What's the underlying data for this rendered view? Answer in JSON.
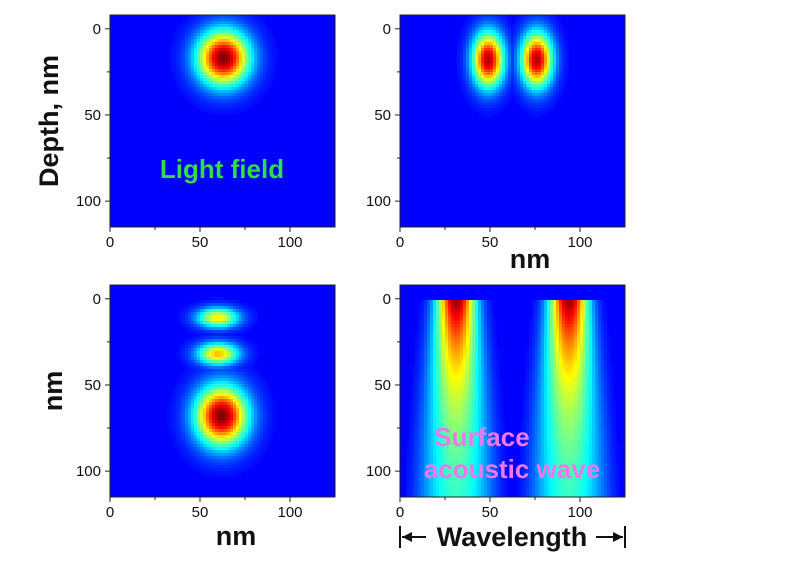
{
  "chart_data": [
    {
      "type": "heatmap",
      "panel": "top-left",
      "title": "",
      "xlabel": "",
      "ylabel": "Depth, nm",
      "xlim": [
        0,
        125
      ],
      "ylim": [
        115,
        -8
      ],
      "x_ticks": [
        0,
        50,
        100
      ],
      "y_ticks": [
        0,
        50,
        100
      ],
      "annotation": "Light field",
      "annotation_color": "#33dd44",
      "hotspots": [
        {
          "x": 63,
          "y": 17,
          "sx": 10,
          "sy": 11,
          "amplitude": 1.0
        }
      ]
    },
    {
      "type": "heatmap",
      "panel": "top-right",
      "title": "",
      "xlabel": "nm",
      "ylabel": "",
      "xlim": [
        0,
        125
      ],
      "ylim": [
        115,
        -8
      ],
      "x_ticks": [
        0,
        50,
        100
      ],
      "y_ticks": [
        0,
        50,
        100
      ],
      "annotation": "",
      "hotspots": [
        {
          "x": 49,
          "y": 18,
          "sx": 6,
          "sy": 11,
          "amplitude": 0.95
        },
        {
          "x": 76,
          "y": 18,
          "sx": 6,
          "sy": 11,
          "amplitude": 0.95
        }
      ]
    },
    {
      "type": "heatmap",
      "panel": "bottom-left",
      "title": "",
      "xlabel": "nm",
      "ylabel": "nm",
      "xlim": [
        0,
        125
      ],
      "ylim": [
        115,
        -8
      ],
      "x_ticks": [
        0,
        50,
        100
      ],
      "y_ticks": [
        0,
        50,
        100
      ],
      "annotation": "",
      "hotspots": [
        {
          "x": 60,
          "y": 11,
          "sx": 8,
          "sy": 4,
          "amplitude": 0.6
        },
        {
          "x": 60,
          "y": 32,
          "sx": 8,
          "sy": 4.5,
          "amplitude": 0.65
        },
        {
          "x": 62,
          "y": 68,
          "sx": 10,
          "sy": 12,
          "amplitude": 1.0
        }
      ]
    },
    {
      "type": "heatmap",
      "panel": "bottom-right",
      "title": "",
      "xlabel": "Wavelength",
      "ylabel": "",
      "xlim": [
        0,
        125
      ],
      "ylim": [
        115,
        -8
      ],
      "x_ticks": [
        0,
        50,
        100
      ],
      "y_ticks": [
        0,
        50,
        100
      ],
      "annotation_lines": [
        "Surface",
        "acoustic wave"
      ],
      "annotation_color": "#ee77ee",
      "wave_period": 62.5,
      "wave_phase": 0,
      "decay_depth": 55
    }
  ]
}
